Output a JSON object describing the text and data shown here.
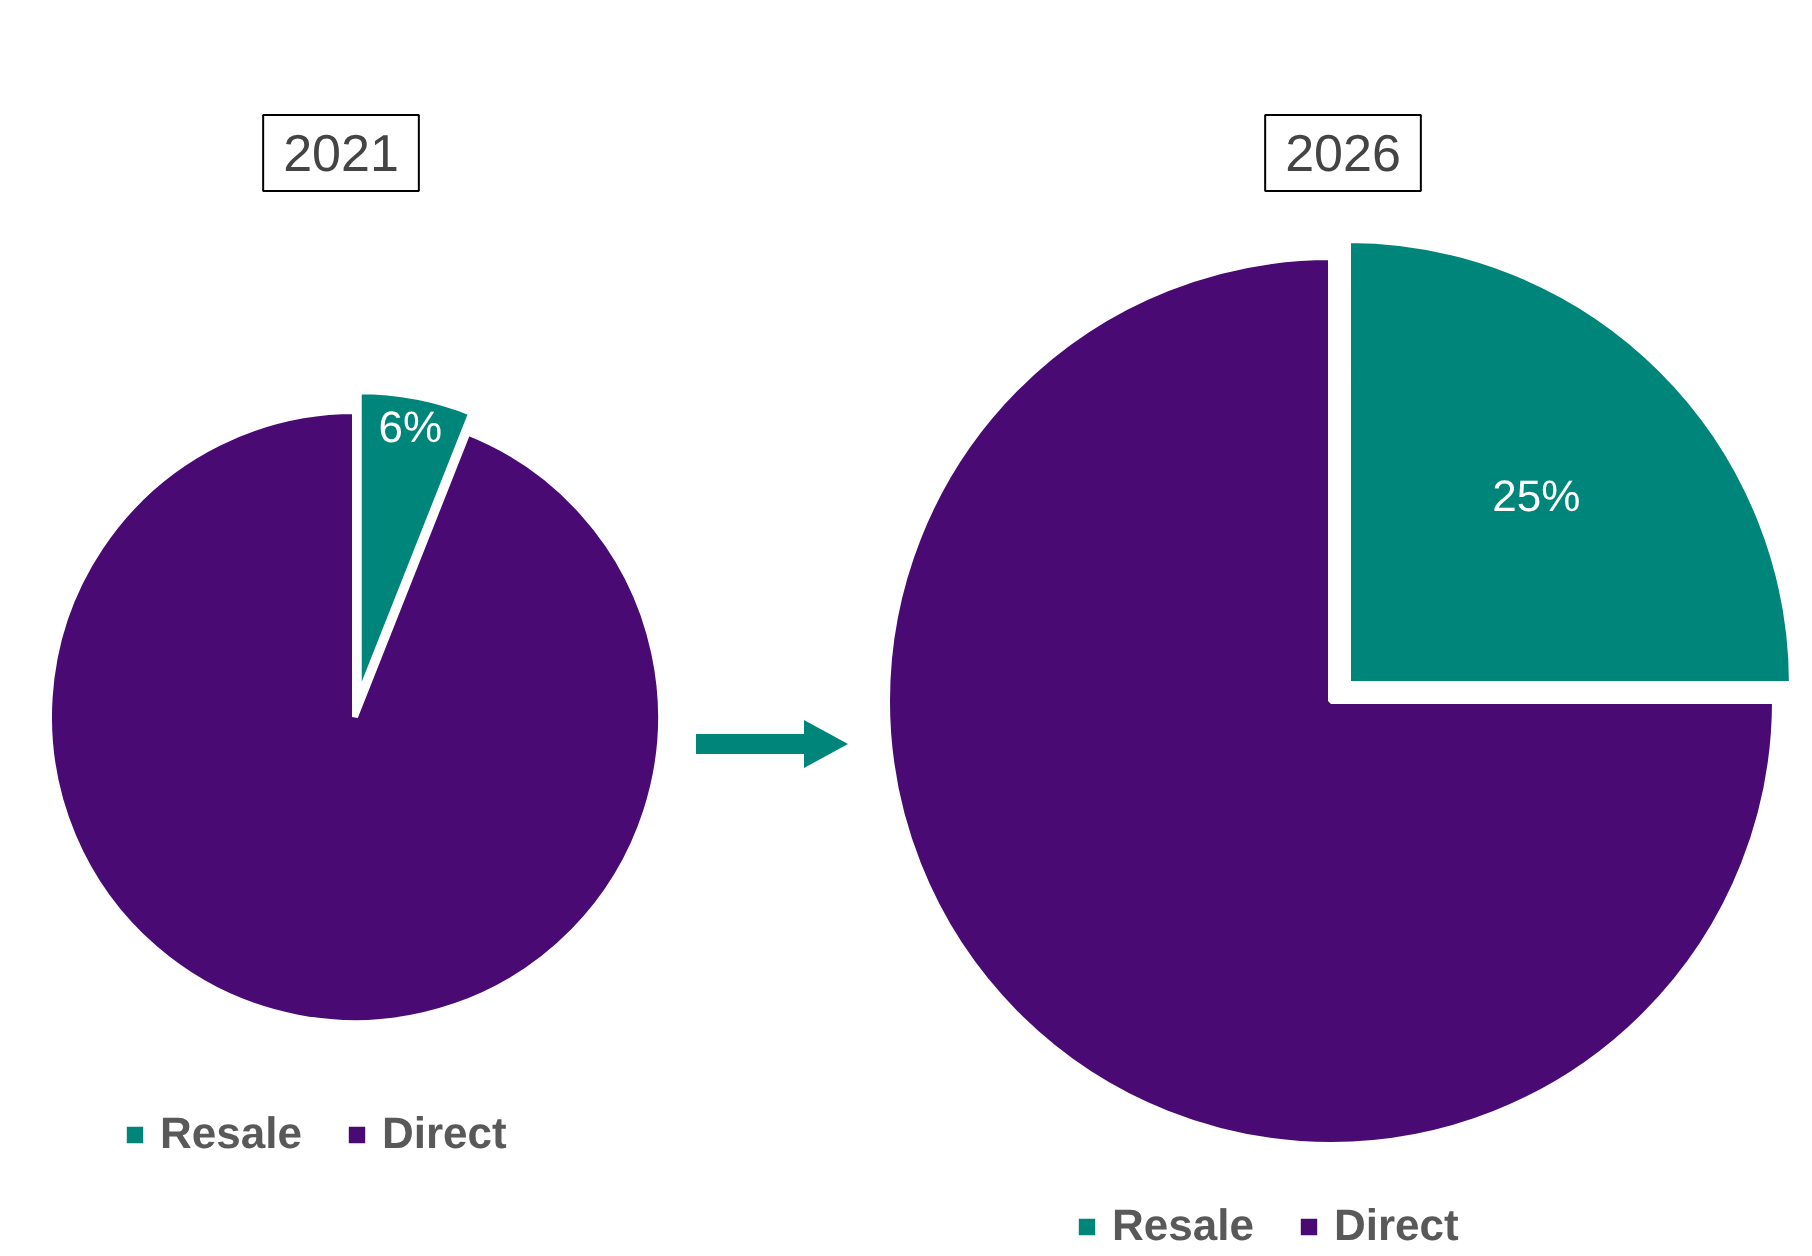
{
  "chart_data": [
    {
      "type": "pie",
      "title": "2021",
      "categories": [
        "Resale",
        "Direct"
      ],
      "values": [
        6,
        94
      ],
      "colors": [
        "#00857a",
        "#4a0a73"
      ],
      "value_labels": [
        "6%",
        null
      ],
      "legend": "bottom"
    },
    {
      "type": "pie",
      "title": "2026",
      "categories": [
        "Resale",
        "Direct"
      ],
      "values": [
        25,
        75
      ],
      "colors": [
        "#00857a",
        "#4a0a73"
      ],
      "value_labels": [
        "25%",
        null
      ],
      "legend": "bottom"
    }
  ]
}
